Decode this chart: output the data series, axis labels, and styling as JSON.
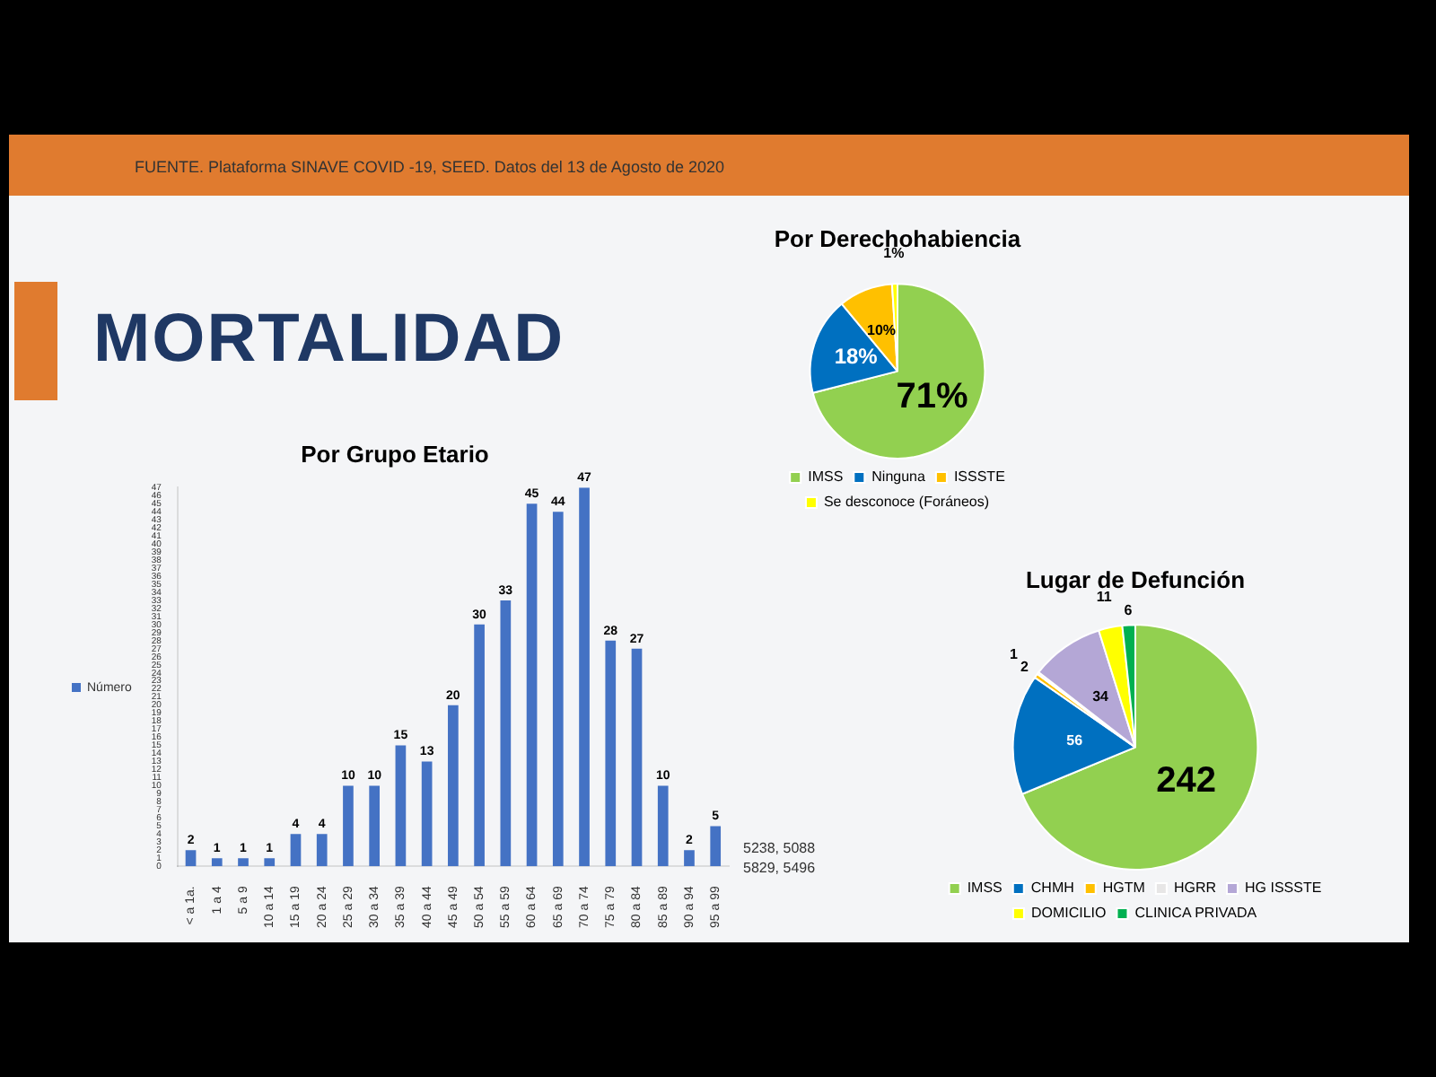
{
  "chart_data": [
    {
      "type": "other",
      "title": "MORTALIDAD",
      "annotations": [
        "FUENTE. Plataforma SINAVE COVID -19, SEED. Datos del 13 de Agosto de 2020"
      ]
    },
    {
      "type": "pie",
      "title": "Por Derechohabiencia",
      "categories": [
        "IMSS",
        "Ninguna",
        "ISSSTE",
        "Se desconoce (Foráneos)"
      ],
      "values": [
        71,
        18,
        10,
        1
      ],
      "colors": [
        "#92d050",
        "#0070c0",
        "#ffc000",
        "#ffff00"
      ],
      "value_labels": [
        "71%",
        "18%",
        "10%",
        "1%"
      ],
      "legend": "bottom"
    },
    {
      "type": "bar",
      "title": "Por Grupo Etario",
      "categories": [
        "< a 1a.",
        "1 a 4",
        "5 a 9",
        "10 a 14",
        "15 a 19",
        "20 a 24",
        "25 a 29",
        "30 a 34",
        "35 a 39",
        "40 a 44",
        "45 a 49",
        "50 a 54",
        "55 a 59",
        "60 a 64",
        "65 a 69",
        "70 a 74",
        "75 a 79",
        "80 a 84",
        "85 a 89",
        "90 a 94",
        "95 a 99"
      ],
      "series": [
        {
          "name": "Número",
          "color": "#4472c4",
          "values": [
            2,
            1,
            1,
            1,
            4,
            4,
            10,
            10,
            15,
            13,
            20,
            30,
            33,
            45,
            44,
            47,
            28,
            27,
            10,
            2,
            5
          ]
        }
      ],
      "ylim": [
        0,
        47
      ],
      "yticks": [
        0,
        1,
        2,
        3,
        4,
        5,
        6,
        7,
        8,
        9,
        10,
        11,
        12,
        13,
        14,
        15,
        16,
        17,
        18,
        19,
        20,
        21,
        22,
        23,
        24,
        25,
        26,
        27,
        28,
        29,
        30,
        31,
        32,
        33,
        34,
        35,
        36,
        37,
        38,
        39,
        40,
        41,
        42,
        43,
        44,
        45,
        46,
        47
      ],
      "grid": false,
      "legend": "left",
      "data_labels": true,
      "annotations": [
        "5238, 5088",
        "5829, 5496"
      ]
    },
    {
      "type": "pie",
      "title": "Lugar de Defunción",
      "categories": [
        "IMSS",
        "CHMH",
        "HGTM",
        "HGRR",
        "HG ISSSTE",
        "DOMICILIO",
        "CLINICA PRIVADA"
      ],
      "values": [
        242,
        56,
        2,
        1,
        34,
        11,
        6
      ],
      "colors": [
        "#92d050",
        "#0070c0",
        "#ffc000",
        "#e7e6e6",
        "#b4a7d6",
        "#ffff00",
        "#00b050"
      ],
      "data_labels": true,
      "legend": "bottom"
    }
  ]
}
